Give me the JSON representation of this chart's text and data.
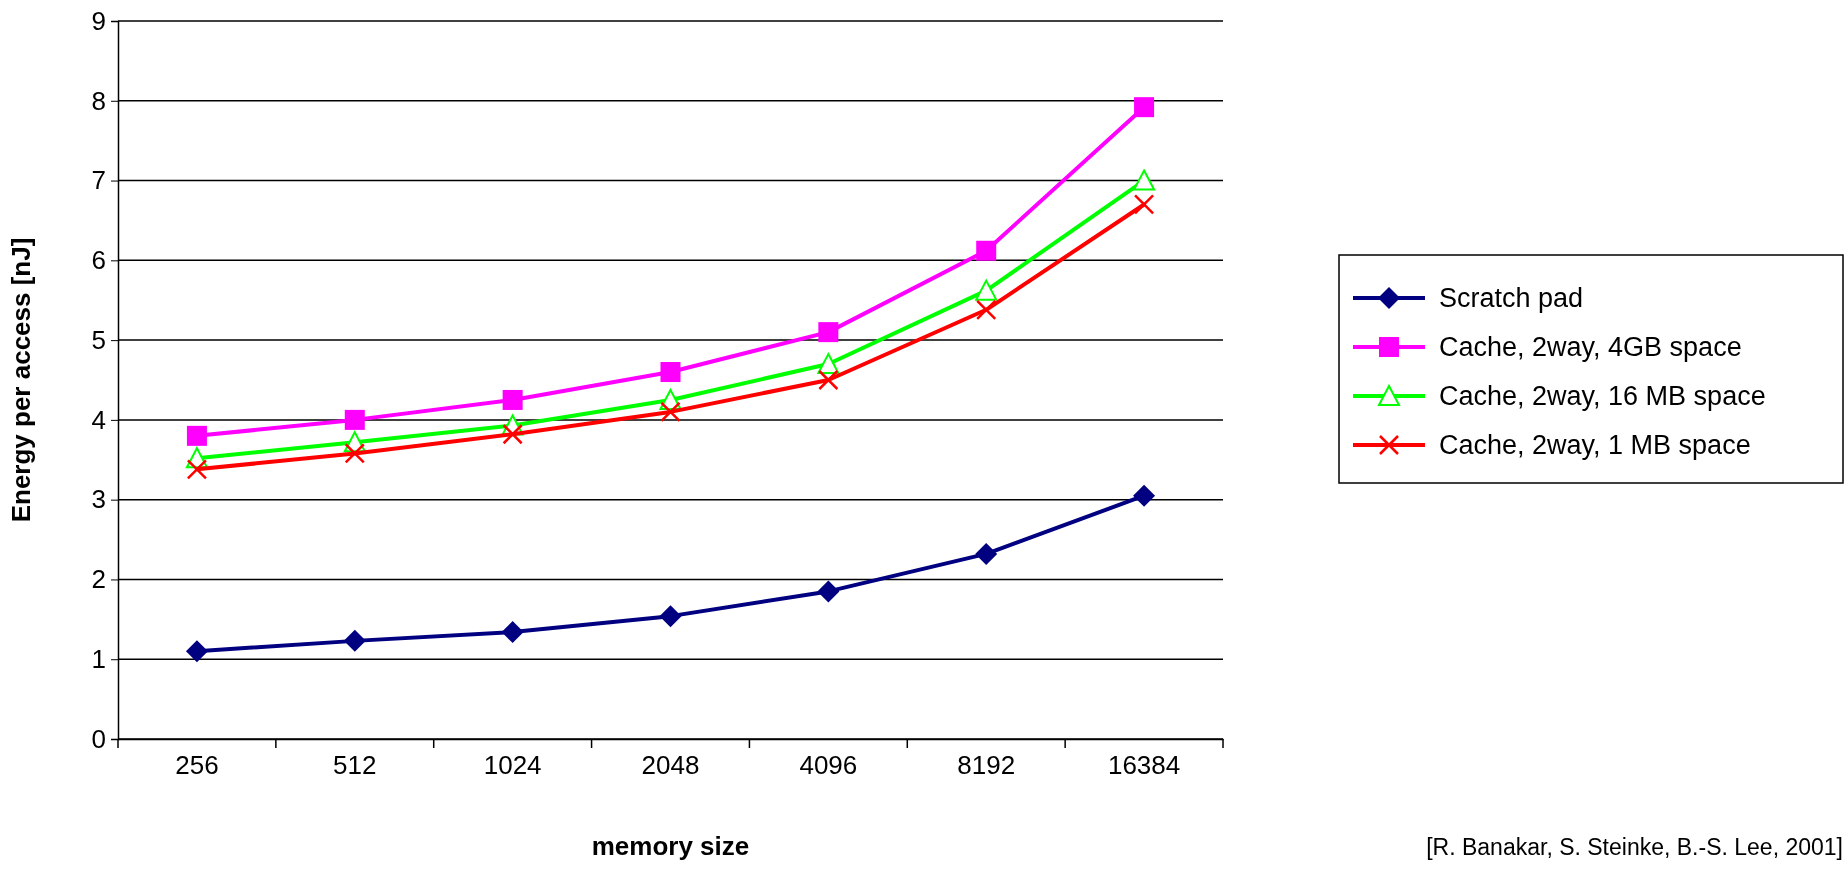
{
  "chart_data": {
    "type": "line",
    "xlabel": "memory size",
    "ylabel": "Energy per access [nJ]",
    "categories": [
      "256",
      "512",
      "1024",
      "2048",
      "4096",
      "8192",
      "16384"
    ],
    "ylim": [
      0,
      9
    ],
    "yticks": [
      0,
      1,
      2,
      3,
      4,
      5,
      6,
      7,
      8,
      9
    ],
    "grid": "y",
    "legend": "right",
    "line_style": "solid",
    "annotations": [
      "[R. Banakar, S. Steinke, B.-S. Lee, 2001]"
    ],
    "series": [
      {
        "name": "Scratch pad",
        "color": "#000080",
        "marker": "diamond",
        "values": [
          1.1,
          1.23,
          1.34,
          1.54,
          1.85,
          2.32,
          3.05
        ]
      },
      {
        "name": "Cache, 2way, 4GB space",
        "color": "#ff00ff",
        "marker": "square",
        "values": [
          3.8,
          4.0,
          4.25,
          4.6,
          5.1,
          6.12,
          7.92
        ]
      },
      {
        "name": "Cache, 2way, 16 MB space",
        "color": "#00ff00",
        "marker": "triangle",
        "values": [
          3.52,
          3.72,
          3.93,
          4.25,
          4.7,
          5.62,
          7.0
        ]
      },
      {
        "name": "Cache, 2way, 1 MB space",
        "color": "#ff0000",
        "marker": "cross",
        "values": [
          3.38,
          3.58,
          3.82,
          4.1,
          4.5,
          5.38,
          6.7
        ]
      }
    ]
  }
}
